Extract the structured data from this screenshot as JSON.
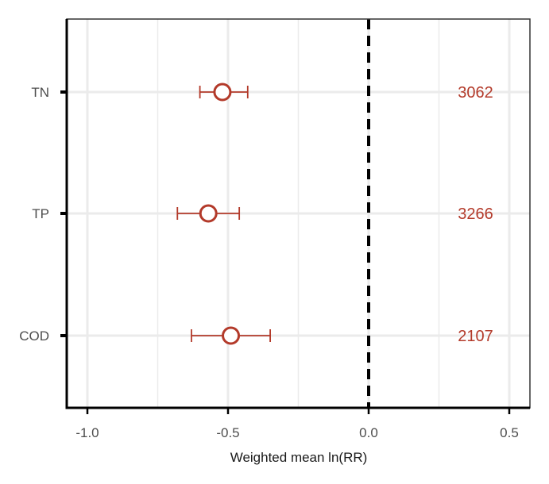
{
  "chart_data": {
    "type": "scatter",
    "subtype": "forest-plot",
    "title": "",
    "xlabel": "Weighted mean ln(RR)",
    "ylabel": "",
    "xlim": [
      -1.08,
      0.57
    ],
    "x_ticks": [
      -1.0,
      -0.5,
      0.0,
      0.5
    ],
    "x_tick_labels": [
      "-1.0",
      "-0.5",
      "0.0",
      "0.5"
    ],
    "minor_gridlines_x": [
      -0.75,
      -0.25,
      0.25
    ],
    "categories": [
      "TN",
      "TP",
      "COD"
    ],
    "series": [
      {
        "points": [
          {
            "category": "TN",
            "estimate": -0.52,
            "ci_low": -0.6,
            "ci_high": -0.43,
            "n_label": "3062"
          },
          {
            "category": "TP",
            "estimate": -0.57,
            "ci_low": -0.68,
            "ci_high": -0.46,
            "n_label": "3266"
          },
          {
            "category": "COD",
            "estimate": -0.49,
            "ci_low": -0.63,
            "ci_high": -0.35,
            "n_label": "2107"
          }
        ]
      }
    ],
    "reference_line": {
      "x": 0.0,
      "style": "dashed"
    },
    "count_label_x": 0.38,
    "grid": true,
    "legend": "none",
    "colors": {
      "points": "#b33a2a",
      "grid": "#ebebeb",
      "axis": "#000000",
      "reference": "#000000"
    }
  }
}
